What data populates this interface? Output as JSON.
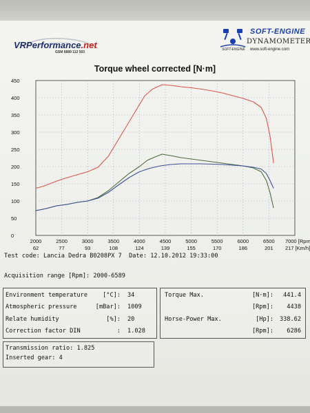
{
  "header": {
    "left_brand_main": "VRPerformance",
    "left_brand_suffix": ".net",
    "left_brand_phone": "GSM 6889 112 503",
    "right_brand": "SOFT-ENGINE",
    "right_sub": "DYNAMOMETERS",
    "right_url": "www.soft-engine.com",
    "right_small": "SOFT-ENGINE"
  },
  "chart_data": {
    "type": "line",
    "title": "Torque wheel corrected [N·m]",
    "x_range": [
      2000,
      7000
    ],
    "y_range": [
      0,
      450
    ],
    "x_ticks": [
      {
        "top": "2000",
        "bottom": "62"
      },
      {
        "top": "2500",
        "bottom": "77"
      },
      {
        "top": "3000",
        "bottom": "93"
      },
      {
        "top": "3500",
        "bottom": "108"
      },
      {
        "top": "4000",
        "bottom": "124"
      },
      {
        "top": "4500",
        "bottom": "139"
      },
      {
        "top": "5000",
        "bottom": "155"
      },
      {
        "top": "5500",
        "bottom": "170"
      },
      {
        "top": "6000",
        "bottom": "186"
      },
      {
        "top": "6500",
        "bottom": "201"
      },
      {
        "top": "7000 [Rpm]",
        "bottom": "217 [Km/h]"
      }
    ],
    "y_ticks": [
      0,
      50,
      100,
      150,
      200,
      250,
      300,
      350,
      400,
      450
    ],
    "grid": true,
    "colors": {
      "red": "#d9544a",
      "green": "#4a6b3a",
      "blue": "#3a4f9a",
      "grid": "#b6b8d8"
    },
    "series": [
      {
        "color": "red",
        "points": [
          [
            2000,
            137
          ],
          [
            2150,
            143
          ],
          [
            2300,
            152
          ],
          [
            2500,
            163
          ],
          [
            2700,
            172
          ],
          [
            3000,
            185
          ],
          [
            3200,
            198
          ],
          [
            3400,
            230
          ],
          [
            3600,
            280
          ],
          [
            3800,
            330
          ],
          [
            4000,
            380
          ],
          [
            4100,
            405
          ],
          [
            4250,
            425
          ],
          [
            4438,
            438
          ],
          [
            4600,
            436
          ],
          [
            4800,
            432
          ],
          [
            5000,
            429
          ],
          [
            5200,
            425
          ],
          [
            5400,
            420
          ],
          [
            5600,
            414
          ],
          [
            5800,
            406
          ],
          [
            6000,
            398
          ],
          [
            6200,
            388
          ],
          [
            6350,
            372
          ],
          [
            6450,
            340
          ],
          [
            6520,
            290
          ],
          [
            6589,
            210
          ]
        ]
      },
      {
        "color": "green",
        "points": [
          [
            2000,
            72
          ],
          [
            2200,
            78
          ],
          [
            2400,
            86
          ],
          [
            2600,
            90
          ],
          [
            2800,
            96
          ],
          [
            3000,
            100
          ],
          [
            3200,
            110
          ],
          [
            3400,
            130
          ],
          [
            3600,
            155
          ],
          [
            3800,
            180
          ],
          [
            4000,
            200
          ],
          [
            4150,
            218
          ],
          [
            4300,
            228
          ],
          [
            4438,
            236
          ],
          [
            4600,
            232
          ],
          [
            4800,
            226
          ],
          [
            5000,
            222
          ],
          [
            5200,
            218
          ],
          [
            5400,
            214
          ],
          [
            5600,
            210
          ],
          [
            5800,
            206
          ],
          [
            6000,
            202
          ],
          [
            6200,
            196
          ],
          [
            6350,
            185
          ],
          [
            6450,
            160
          ],
          [
            6520,
            125
          ],
          [
            6589,
            80
          ]
        ]
      },
      {
        "color": "blue",
        "points": [
          [
            2000,
            72
          ],
          [
            2200,
            78
          ],
          [
            2400,
            86
          ],
          [
            2600,
            90
          ],
          [
            2800,
            96
          ],
          [
            3000,
            100
          ],
          [
            3200,
            108
          ],
          [
            3400,
            125
          ],
          [
            3600,
            147
          ],
          [
            3800,
            168
          ],
          [
            4000,
            185
          ],
          [
            4200,
            195
          ],
          [
            4400,
            202
          ],
          [
            4600,
            206
          ],
          [
            4800,
            208
          ],
          [
            5000,
            208
          ],
          [
            5200,
            208
          ],
          [
            5400,
            207
          ],
          [
            5600,
            206
          ],
          [
            5800,
            204
          ],
          [
            6000,
            202
          ],
          [
            6200,
            198
          ],
          [
            6350,
            193
          ],
          [
            6450,
            180
          ],
          [
            6520,
            160
          ],
          [
            6589,
            137
          ]
        ]
      }
    ]
  },
  "test": {
    "code_label": "Test code:",
    "code_value": "Lancia Dedra B0208PX 7",
    "date_label": "Date:",
    "date_value": "12.10.2012 19:33:00",
    "range_label": "Acquisition range [Rpm]:",
    "range_value": "2000-6589"
  },
  "env": [
    {
      "label": "Environment temperature",
      "unit": "[°C]:",
      "value": "34"
    },
    {
      "label": "Atmospheric pressure",
      "unit": "[mBar]:",
      "value": "1009"
    },
    {
      "label": "Relate humidity",
      "unit": "[%]:",
      "value": "20"
    },
    {
      "label": "Correction factor DIN",
      "unit": ":",
      "value": "1.028"
    }
  ],
  "max": [
    {
      "label": "Torque Max.",
      "unit": "[N·m]:",
      "value": "441.4"
    },
    {
      "label": "",
      "unit": "[Rpm]:",
      "value": "4438"
    },
    {
      "label": "Horse-Power Max.",
      "unit": "[Hp]:",
      "value": "338.62"
    },
    {
      "label": "",
      "unit": "[Rpm]:",
      "value": "6286"
    }
  ],
  "transmission": {
    "ratio_label": "Transmission ratio:",
    "ratio_value": "1.825",
    "gear_label": "Inserted gear:",
    "gear_value": "4"
  }
}
